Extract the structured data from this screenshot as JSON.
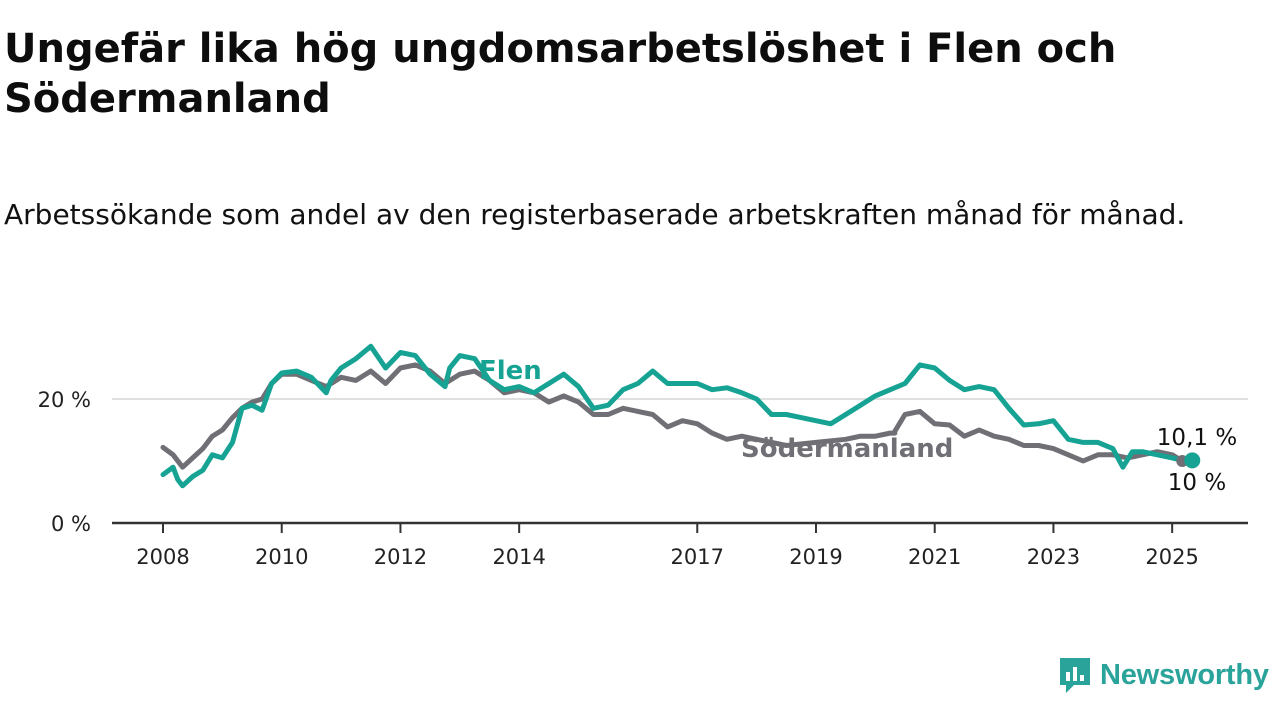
{
  "title": "Ungefär lika hög ungdomsarbetslöshet i Flen och Södermanland",
  "subtitle": "Arbetssökande som andel av den registerbaserade arbetskraften månad för månad.",
  "brand": {
    "name": "Newsworthy",
    "color": "#2aa39b",
    "icon": "newsworthy-logo-icon"
  },
  "chart_data": {
    "type": "line",
    "x_ticks": [
      "2008",
      "2010",
      "2012",
      "2014",
      "2017",
      "2019",
      "2021",
      "2023",
      "2025"
    ],
    "y_ticks": [
      "0 %",
      "20 %"
    ],
    "ylim": [
      0,
      30
    ],
    "xlim": [
      2008,
      2025.25
    ],
    "grid": "horizontal",
    "legend": "inline labels",
    "series": [
      {
        "name": "Flen",
        "color": "#16a394",
        "end_label": "10,1 %",
        "points": [
          [
            2008.0,
            7.8
          ],
          [
            2008.17,
            9.0
          ],
          [
            2008.25,
            7.0
          ],
          [
            2008.33,
            6.0
          ],
          [
            2008.5,
            7.5
          ],
          [
            2008.67,
            8.5
          ],
          [
            2008.83,
            11.0
          ],
          [
            2009.0,
            10.5
          ],
          [
            2009.17,
            13.0
          ],
          [
            2009.33,
            18.5
          ],
          [
            2009.5,
            19.0
          ],
          [
            2009.67,
            18.2
          ],
          [
            2009.83,
            22.5
          ],
          [
            2010.0,
            24.2
          ],
          [
            2010.25,
            24.5
          ],
          [
            2010.5,
            23.5
          ],
          [
            2010.75,
            21.0
          ],
          [
            2010.83,
            23.0
          ],
          [
            2011.0,
            25.0
          ],
          [
            2011.25,
            26.5
          ],
          [
            2011.5,
            28.5
          ],
          [
            2011.75,
            25.0
          ],
          [
            2012.0,
            27.5
          ],
          [
            2012.25,
            27.0
          ],
          [
            2012.5,
            24.0
          ],
          [
            2012.75,
            22.0
          ],
          [
            2012.83,
            25.0
          ],
          [
            2013.0,
            27.0
          ],
          [
            2013.25,
            26.5
          ],
          [
            2013.5,
            23.0
          ],
          [
            2013.75,
            21.5
          ],
          [
            2014.0,
            22.0
          ],
          [
            2014.25,
            21.0
          ],
          [
            2014.5,
            22.5
          ],
          [
            2014.75,
            24.0
          ],
          [
            2015.0,
            22.0
          ],
          [
            2015.25,
            18.5
          ],
          [
            2015.5,
            19.0
          ],
          [
            2015.75,
            21.5
          ],
          [
            2016.0,
            22.5
          ],
          [
            2016.25,
            24.5
          ],
          [
            2016.5,
            22.5
          ],
          [
            2016.75,
            22.5
          ],
          [
            2017.0,
            22.5
          ],
          [
            2017.25,
            21.5
          ],
          [
            2017.5,
            21.8
          ],
          [
            2017.75,
            21.0
          ],
          [
            2018.0,
            20.0
          ],
          [
            2018.25,
            17.5
          ],
          [
            2018.5,
            17.5
          ],
          [
            2018.75,
            17.0
          ],
          [
            2019.0,
            16.5
          ],
          [
            2019.25,
            16.0
          ],
          [
            2019.5,
            17.5
          ],
          [
            2019.75,
            19.0
          ],
          [
            2020.0,
            20.5
          ],
          [
            2020.25,
            21.5
          ],
          [
            2020.5,
            22.5
          ],
          [
            2020.75,
            25.5
          ],
          [
            2021.0,
            25.0
          ],
          [
            2021.25,
            23.0
          ],
          [
            2021.5,
            21.5
          ],
          [
            2021.75,
            22.0
          ],
          [
            2022.0,
            21.5
          ],
          [
            2022.25,
            18.5
          ],
          [
            2022.5,
            15.8
          ],
          [
            2022.75,
            16.0
          ],
          [
            2023.0,
            16.5
          ],
          [
            2023.25,
            13.5
          ],
          [
            2023.5,
            13.0
          ],
          [
            2023.75,
            13.0
          ],
          [
            2024.0,
            12.0
          ],
          [
            2024.17,
            9.0
          ],
          [
            2024.33,
            11.5
          ],
          [
            2024.5,
            11.5
          ],
          [
            2024.75,
            11.0
          ],
          [
            2025.0,
            10.5
          ],
          [
            2025.17,
            10.1
          ]
        ]
      },
      {
        "name": "Södermanland",
        "color": "#6f6f75",
        "end_label": "10 %",
        "points": [
          [
            2008.0,
            12.2
          ],
          [
            2008.17,
            11.0
          ],
          [
            2008.33,
            9.0
          ],
          [
            2008.5,
            10.5
          ],
          [
            2008.67,
            12.0
          ],
          [
            2008.83,
            14.0
          ],
          [
            2009.0,
            15.0
          ],
          [
            2009.17,
            17.0
          ],
          [
            2009.33,
            18.5
          ],
          [
            2009.5,
            19.5
          ],
          [
            2009.67,
            20.0
          ],
          [
            2009.83,
            22.5
          ],
          [
            2010.0,
            24.0
          ],
          [
            2010.25,
            24.0
          ],
          [
            2010.5,
            23.0
          ],
          [
            2010.75,
            22.0
          ],
          [
            2011.0,
            23.5
          ],
          [
            2011.25,
            23.0
          ],
          [
            2011.5,
            24.5
          ],
          [
            2011.75,
            22.5
          ],
          [
            2012.0,
            25.0
          ],
          [
            2012.25,
            25.5
          ],
          [
            2012.5,
            24.5
          ],
          [
            2012.75,
            22.5
          ],
          [
            2013.0,
            24.0
          ],
          [
            2013.25,
            24.5
          ],
          [
            2013.5,
            23.0
          ],
          [
            2013.75,
            21.0
          ],
          [
            2014.0,
            21.5
          ],
          [
            2014.25,
            21.0
          ],
          [
            2014.5,
            19.5
          ],
          [
            2014.75,
            20.5
          ],
          [
            2015.0,
            19.5
          ],
          [
            2015.25,
            17.5
          ],
          [
            2015.5,
            17.5
          ],
          [
            2015.75,
            18.5
          ],
          [
            2016.0,
            18.0
          ],
          [
            2016.25,
            17.5
          ],
          [
            2016.5,
            15.5
          ],
          [
            2016.75,
            16.5
          ],
          [
            2017.0,
            16.0
          ],
          [
            2017.25,
            14.5
          ],
          [
            2017.5,
            13.5
          ],
          [
            2017.75,
            14.0
          ],
          [
            2018.0,
            13.5
          ],
          [
            2018.5,
            12.5
          ],
          [
            2019.0,
            13.0
          ],
          [
            2019.5,
            13.5
          ],
          [
            2019.75,
            14.0
          ],
          [
            2020.0,
            14.0
          ],
          [
            2020.25,
            14.5
          ],
          [
            2020.33,
            14.5
          ],
          null,
          [
            2020.33,
            14.8
          ],
          [
            2020.5,
            17.5
          ],
          [
            2020.75,
            18.0
          ],
          [
            2021.0,
            16.0
          ],
          [
            2021.25,
            15.8
          ],
          [
            2021.5,
            14.0
          ],
          [
            2021.75,
            15.0
          ],
          [
            2022.0,
            14.0
          ],
          [
            2022.25,
            13.5
          ],
          [
            2022.5,
            12.5
          ],
          [
            2022.75,
            12.5
          ],
          [
            2023.0,
            12.0
          ],
          [
            2023.25,
            11.0
          ],
          [
            2023.5,
            10.0
          ],
          [
            2023.75,
            11.0
          ],
          [
            2024.0,
            11.0
          ],
          [
            2024.25,
            10.5
          ],
          [
            2024.5,
            11.0
          ],
          [
            2024.75,
            11.5
          ],
          [
            2025.0,
            11.0
          ],
          [
            2025.17,
            10.0
          ]
        ]
      }
    ]
  }
}
